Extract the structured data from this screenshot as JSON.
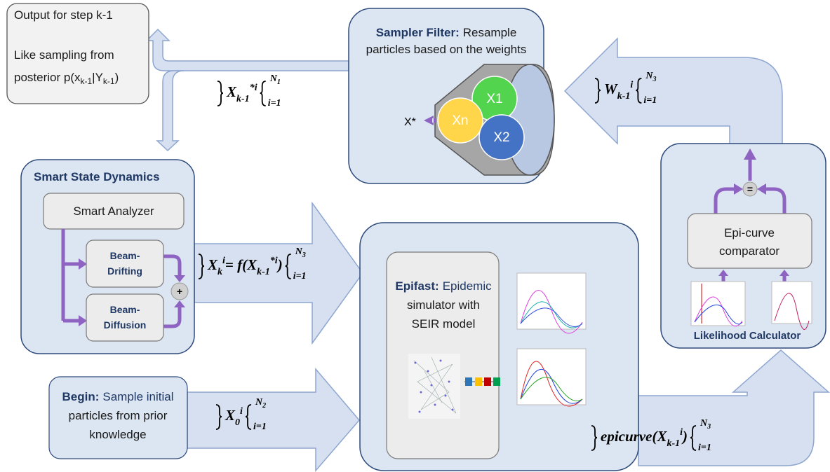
{
  "output": {
    "title": "Output for step k-1",
    "line1": "Like sampling from",
    "line2": "posterior p(x",
    "sub1": "k-1",
    "mid": "|Y",
    "sub2": "k-1",
    "close": ")"
  },
  "sampler_filter": {
    "label": "Sampler Filter:",
    "line1": "Resample",
    "line2": "particles based on the weights",
    "particles": [
      "X1",
      "Xn",
      "X2"
    ],
    "output": "X*"
  },
  "smart_state_dynamics": {
    "title": "Smart State Dynamics",
    "analyzer": "Smart Analyzer",
    "drifting": [
      "Beam-",
      "Drifting"
    ],
    "diffusion": [
      "Beam-",
      "Diffusion"
    ],
    "combine": "+"
  },
  "begin": {
    "label": "Begin:",
    "line1": "Sample initial",
    "line2": "particles from prior",
    "line3": "knowledge"
  },
  "epifast": {
    "label": "Epifast:",
    "line1": "Epidemic",
    "line2": "simulator with",
    "line3": "SEIR model"
  },
  "likelihood": {
    "title": "Likelihood Calculator",
    "comparator": [
      "Epi-curve",
      "comparator"
    ],
    "equals": "="
  },
  "math": {
    "resampled": {
      "symbol": "X",
      "sub": "k-1",
      "sup": "*i",
      "lower": "i=1",
      "upper": "N",
      "upper_sub": "1"
    },
    "weights": {
      "symbol": "W",
      "sub": "k-1",
      "sup": "i",
      "lower": "i=1",
      "upper": "N",
      "upper_sub": "3"
    },
    "propagated": {
      "symbol": "X",
      "sub": "k",
      "sup": "i",
      "rhs": "= f(X",
      "rhs_sub": "k-1",
      "rhs_sup": "*i",
      "rhs_close": ")",
      "lower": "i=1",
      "upper": "N",
      "upper_sub": "3"
    },
    "initial": {
      "symbol": "X",
      "sub": "0",
      "sup": "i",
      "lower": "i=1",
      "upper": "N",
      "upper_sub": "2"
    },
    "epicurves": {
      "func": "epicurve(X",
      "sub": "k-1",
      "sup": "i",
      "close": ")",
      "lower": "i=1",
      "upper": "N",
      "upper_sub": "3"
    }
  }
}
